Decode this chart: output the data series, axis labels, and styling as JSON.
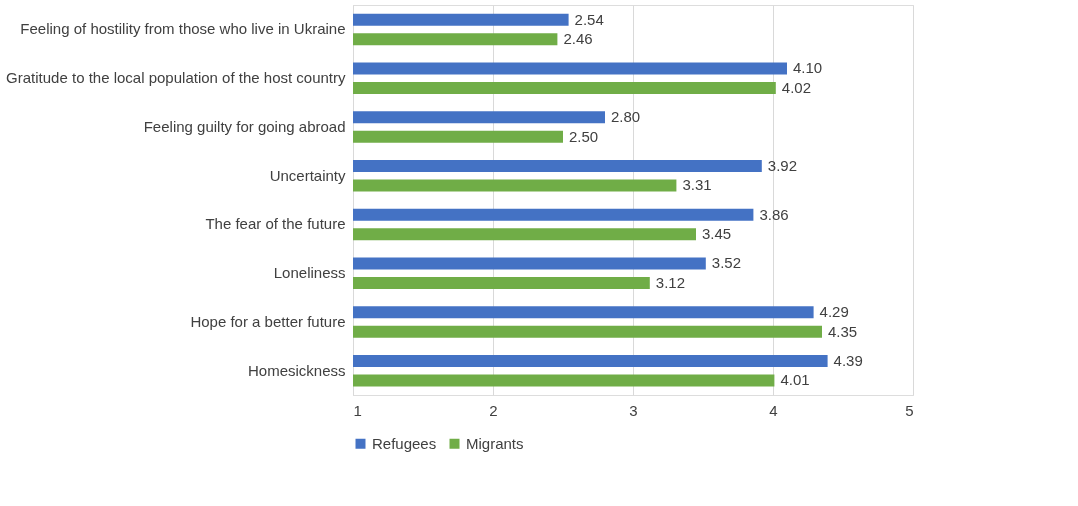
{
  "chart_data": {
    "type": "bar",
    "orientation": "horizontal",
    "categories": [
      "Feeling of hostility from those who live in Ukraine",
      "Gratitude to the local population of the host country",
      "Feeling guilty for going abroad",
      "Uncertainty",
      "The fear of the future",
      "Loneliness",
      "Hope for a better future",
      "Homesickness"
    ],
    "series": [
      {
        "name": "Refugees",
        "color": "#4472c4",
        "values": [
          2.54,
          4.1,
          2.8,
          3.92,
          3.86,
          3.52,
          4.29,
          4.39
        ],
        "value_labels": [
          "2.54",
          "4.10",
          "2.80",
          "3.92",
          "3.86",
          "3.52",
          "4.29",
          "4.39"
        ]
      },
      {
        "name": "Migrants",
        "color": "#70ad47",
        "values": [
          2.46,
          4.02,
          2.5,
          3.31,
          3.45,
          3.12,
          4.35,
          4.01
        ],
        "value_labels": [
          "2.46",
          "4.02",
          "2.50",
          "3.31",
          "3.45",
          "3.12",
          "4.35",
          "4.01"
        ]
      }
    ],
    "xlim": [
      1,
      5
    ],
    "xticks": [
      1,
      2,
      3,
      4,
      5
    ],
    "grid": "x",
    "legend": "bottom"
  }
}
